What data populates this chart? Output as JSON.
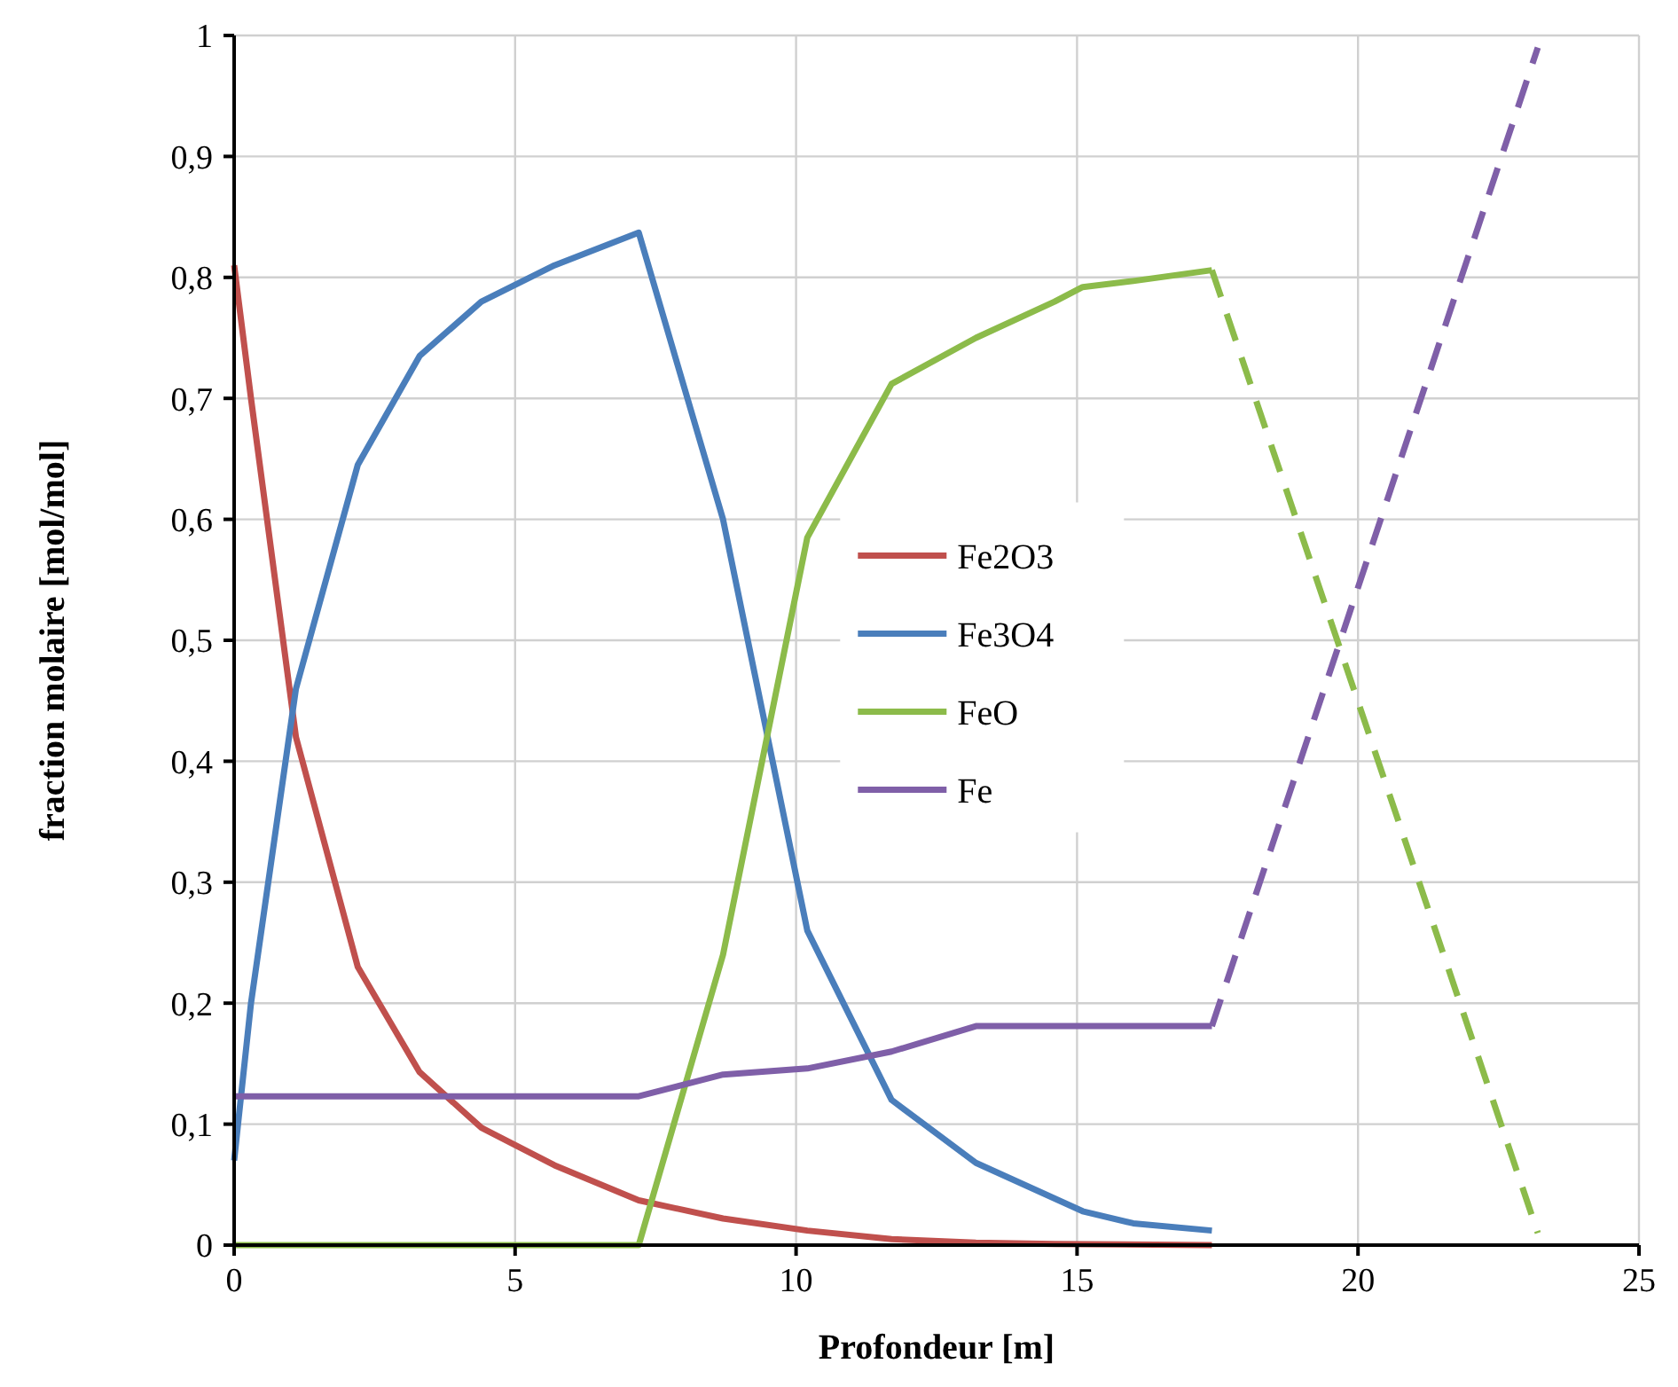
{
  "chart_data": {
    "type": "line",
    "xlabel": "Profondeur [m]",
    "ylabel": "fraction molaire [mol/mol]",
    "xlim": [
      0,
      25
    ],
    "xticks": [
      0,
      5,
      10,
      15,
      20,
      25
    ],
    "ylim": [
      0,
      1
    ],
    "yticks": [
      0,
      {
        "value": 0.1,
        "label": "0,1"
      },
      {
        "value": 0.2,
        "label": "0,2"
      },
      {
        "value": 0.3,
        "label": "0,3"
      },
      {
        "value": 0.4,
        "label": "0,4"
      },
      {
        "value": 0.5,
        "label": "0,5"
      },
      {
        "value": 0.6,
        "label": "0,6"
      },
      {
        "value": 0.7,
        "label": "0,7"
      },
      {
        "value": 0.8,
        "label": "0,8"
      },
      {
        "value": 0.9,
        "label": "0,9"
      },
      1
    ],
    "grid": true,
    "legend": "center",
    "line_style": "solid",
    "marker": "none",
    "series": [
      {
        "name": "Fe2O3",
        "color": "#c0504d",
        "x": [
          0,
          0.3,
          1.1,
          2.2,
          3.3,
          4.4,
          5.7,
          7.2,
          8.7,
          10.2,
          11.7,
          13.2,
          14.6,
          17.4
        ],
        "values": [
          0.81,
          0.7,
          0.42,
          0.23,
          0.143,
          0.097,
          0.066,
          0.037,
          0.022,
          0.012,
          0.005,
          0.002,
          0.001,
          0
        ]
      },
      {
        "name": "Fe3O4",
        "color": "#4a7ebb",
        "x": [
          0,
          0.3,
          1.1,
          2.2,
          3.3,
          4.4,
          5.7,
          7.2,
          8.7,
          10.2,
          11.7,
          13.2,
          15.1,
          16,
          17.4
        ],
        "values": [
          0.07,
          0.2,
          0.46,
          0.645,
          0.735,
          0.78,
          0.81,
          0.837,
          0.6,
          0.26,
          0.12,
          0.068,
          0.028,
          0.018,
          0.012
        ]
      },
      {
        "name": "FeO",
        "color": "#8cbb4a",
        "x": [
          0,
          7.2,
          8.7,
          10.2,
          11.7,
          13.2,
          14.6,
          15.1,
          16,
          17.4
        ],
        "values": [
          0,
          0,
          0.24,
          0.585,
          0.712,
          0.75,
          0.78,
          0.792,
          0.797,
          0.806
        ]
      },
      {
        "name": "Fe",
        "color": "#7f5fa8",
        "x": [
          0,
          7.2,
          8.7,
          10.2,
          11.7,
          13.2,
          17.4
        ],
        "values": [
          0.123,
          0.123,
          0.141,
          0.146,
          0.16,
          0.181,
          0.181
        ]
      },
      {
        "color": "#8cbb4a",
        "line_style": "dashed",
        "x": [
          17.4,
          23.2
        ],
        "values": [
          0.806,
          0.01
        ]
      },
      {
        "color": "#7f5fa8",
        "line_style": "dashed",
        "x": [
          17.4,
          23.2
        ],
        "values": [
          0.181,
          0.99
        ]
      }
    ]
  }
}
